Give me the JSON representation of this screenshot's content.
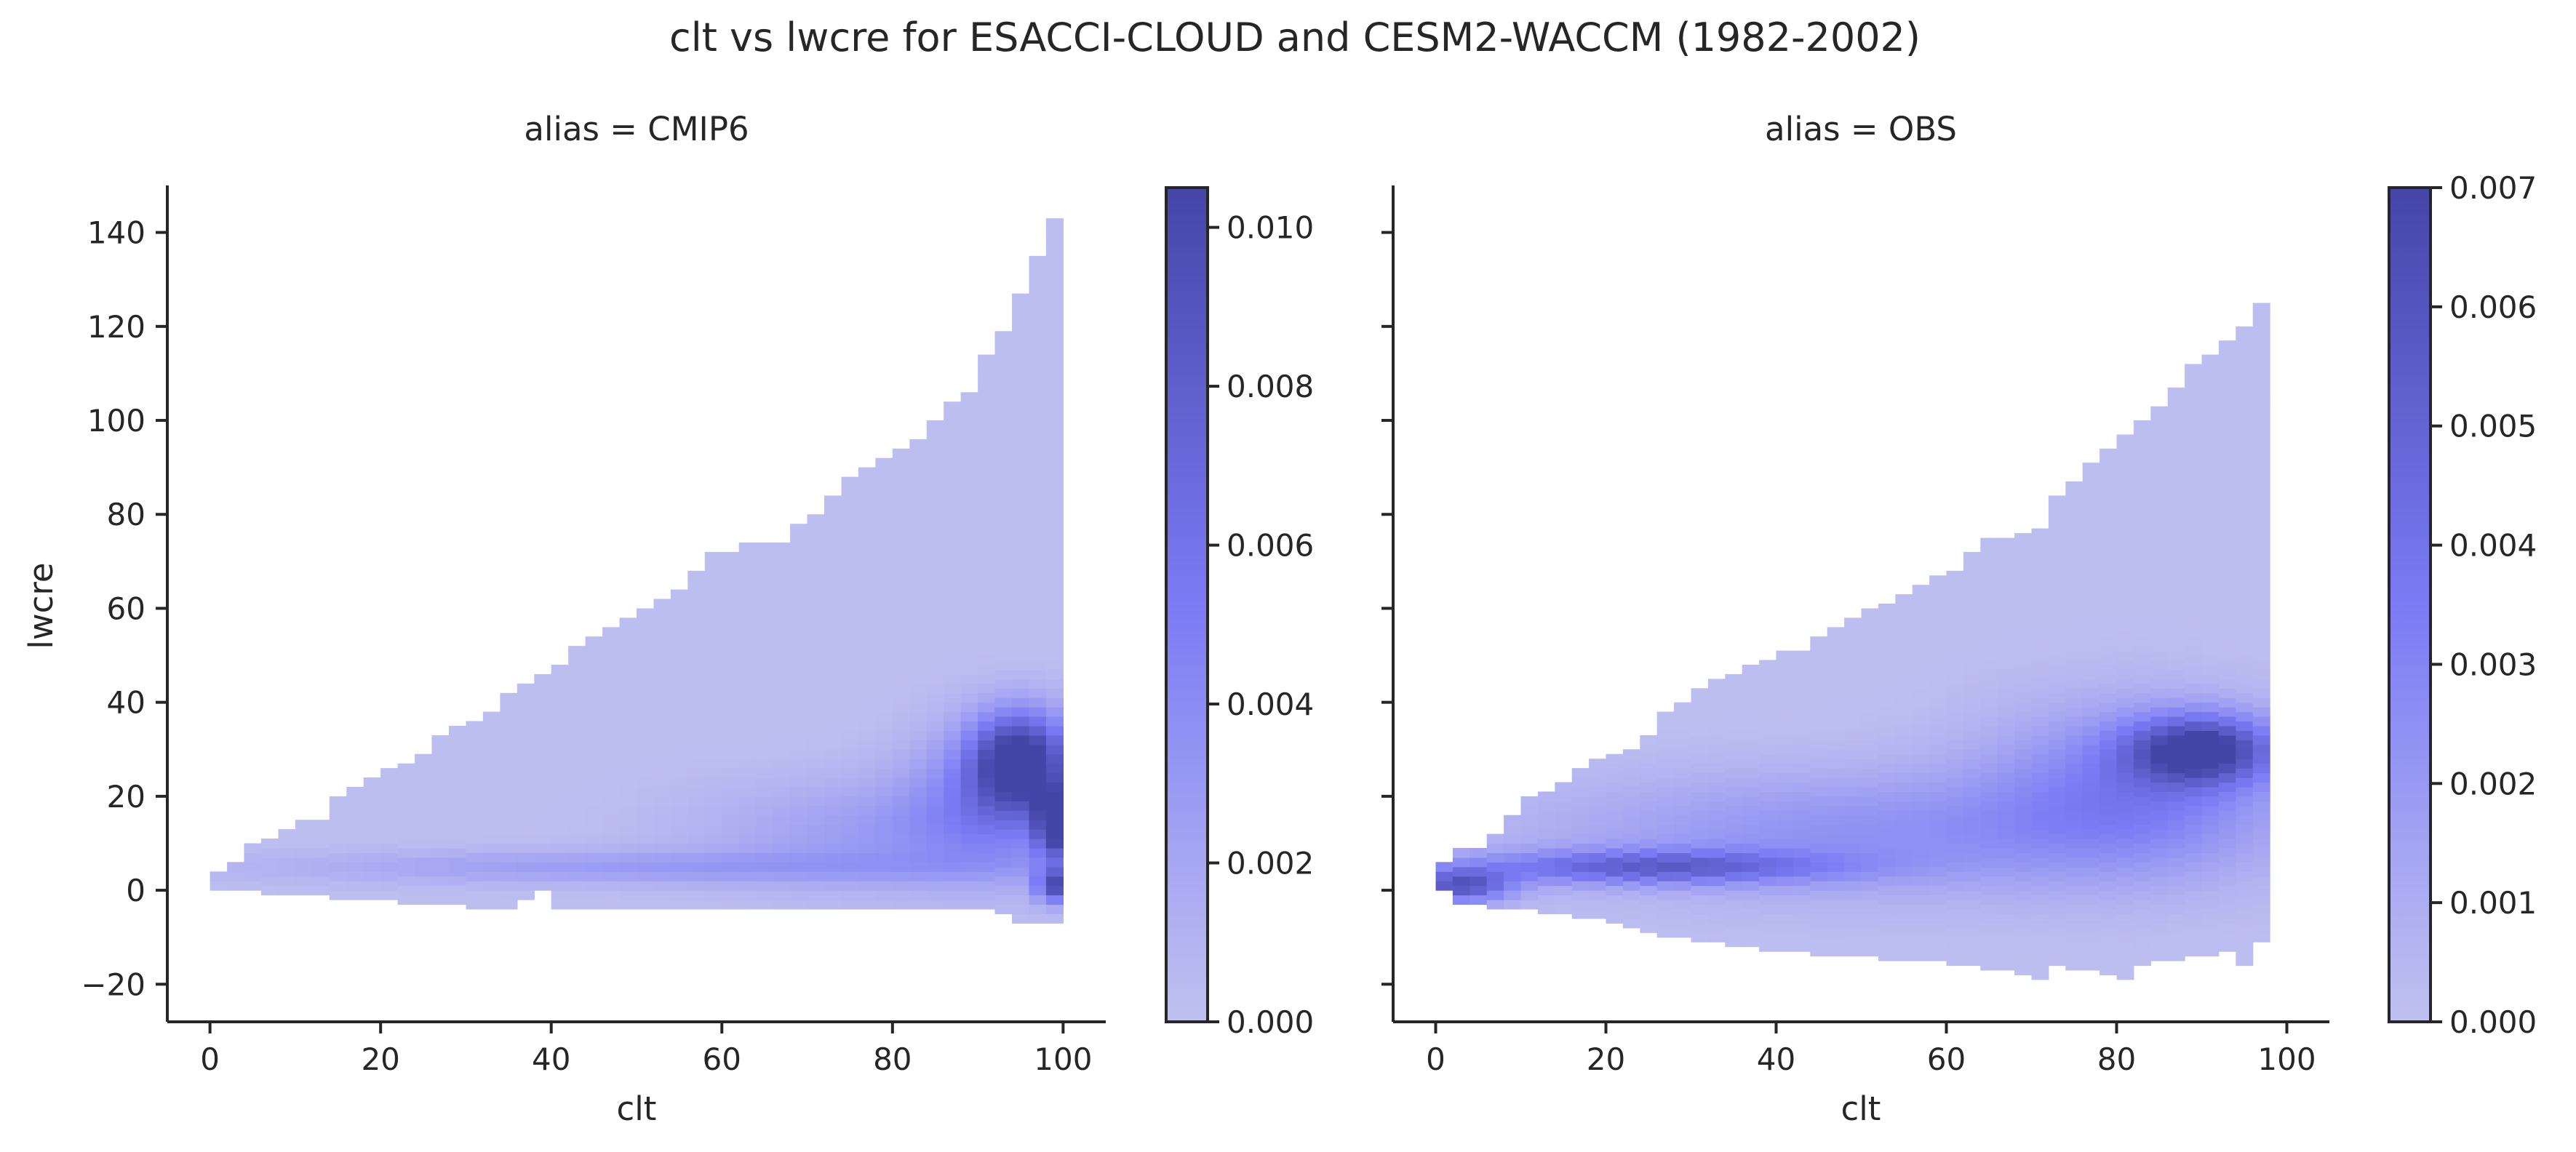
{
  "figure_title": "clt vs lwcre for ESACCI-CLOUD and CESM2-WACCM (1982-2002)",
  "colors": {
    "low": "#c0c1f0",
    "mid": "#6b6bf9",
    "high": "#4545a8",
    "axis": "#262626",
    "background": "#ffffff"
  },
  "chart_data": [
    {
      "type": "heatmap",
      "title": "alias = CMIP6",
      "xlabel": "clt",
      "ylabel": "lwcre",
      "xlim": [
        -5,
        105
      ],
      "ylim": [
        -28,
        150
      ],
      "x_ticks": [
        0,
        20,
        40,
        60,
        80,
        100
      ],
      "x_tick_labels": [
        "0",
        "20",
        "40",
        "60",
        "80",
        "100"
      ],
      "y_ticks": [
        -20,
        0,
        20,
        40,
        60,
        80,
        100,
        120,
        140
      ],
      "y_tick_labels": [
        "−20",
        "0",
        "20",
        "40",
        "60",
        "80",
        "100",
        "120",
        "140"
      ],
      "grid": false,
      "colorbar": {
        "vmin": 0.0,
        "vmax": 0.0105,
        "ticks": [
          0.0,
          0.002,
          0.004,
          0.006,
          0.008,
          0.01
        ],
        "tick_labels": [
          "0.000",
          "0.002",
          "0.004",
          "0.006",
          "0.008",
          "0.010"
        ]
      },
      "density": {
        "bin_width_x": 2,
        "bin_height_y": 2,
        "x_range": [
          0,
          100
        ],
        "upper_envelope": [
          [
            0,
            3
          ],
          [
            2,
            6
          ],
          [
            4,
            9
          ],
          [
            8,
            12
          ],
          [
            12,
            15
          ],
          [
            14,
            19
          ],
          [
            16,
            22
          ],
          [
            20,
            25
          ],
          [
            24,
            28
          ],
          [
            26,
            32
          ],
          [
            30,
            35
          ],
          [
            32,
            38
          ],
          [
            34,
            42
          ],
          [
            38,
            45
          ],
          [
            40,
            48
          ],
          [
            42,
            51
          ],
          [
            44,
            54
          ],
          [
            48,
            58
          ],
          [
            54,
            64
          ],
          [
            56,
            67
          ],
          [
            58,
            71
          ],
          [
            66,
            74
          ],
          [
            68,
            77
          ],
          [
            70,
            80
          ],
          [
            72,
            84
          ],
          [
            74,
            87
          ],
          [
            76,
            90
          ],
          [
            80,
            93
          ],
          [
            82,
            96
          ],
          [
            84,
            99
          ],
          [
            86,
            103
          ],
          [
            88,
            106
          ],
          [
            90,
            113
          ],
          [
            92,
            119
          ],
          [
            94,
            126
          ],
          [
            96,
            134
          ],
          [
            98,
            142
          ],
          [
            100,
            142
          ]
        ],
        "lower_envelope": [
          [
            0,
            0
          ],
          [
            34,
            -4
          ],
          [
            38,
            0
          ],
          [
            40,
            -4
          ],
          [
            90,
            -4
          ],
          [
            94,
            -7
          ],
          [
            100,
            -7
          ]
        ],
        "peaks": [
          {
            "x": 95,
            "y": 28,
            "sx": 4,
            "sy": 7,
            "value": 0.0105
          },
          {
            "x": 99,
            "y": 14,
            "sx": 1.5,
            "sy": 5,
            "value": 0.0098
          },
          {
            "x": 99,
            "y": 1,
            "sx": 1.5,
            "sy": 2.5,
            "value": 0.0085
          },
          {
            "x": 92,
            "y": 20,
            "sx": 7,
            "sy": 10,
            "value": 0.004
          },
          {
            "x": 50,
            "y": 5,
            "sx": 30,
            "sy": 2.5,
            "value": 0.0025
          },
          {
            "x": 80,
            "y": 12,
            "sx": 15,
            "sy": 8,
            "value": 0.0025
          }
        ]
      }
    },
    {
      "type": "heatmap",
      "title": "alias = OBS",
      "xlabel": "clt",
      "ylabel": "",
      "xlim": [
        -5,
        105
      ],
      "ylim": [
        -28,
        150
      ],
      "x_ticks": [
        0,
        20,
        40,
        60,
        80,
        100
      ],
      "x_tick_labels": [
        "0",
        "20",
        "40",
        "60",
        "80",
        "100"
      ],
      "y_ticks": [
        -20,
        0,
        20,
        40,
        60,
        80,
        100,
        120,
        140
      ],
      "y_tick_labels": [
        "",
        "",
        "",
        "",
        "",
        "",
        "",
        "",
        ""
      ],
      "grid": false,
      "colorbar": {
        "vmin": 0.0,
        "vmax": 0.007,
        "ticks": [
          0.0,
          0.001,
          0.002,
          0.003,
          0.004,
          0.005,
          0.006,
          0.007
        ],
        "tick_labels": [
          "0.000",
          "0.001",
          "0.002",
          "0.003",
          "0.004",
          "0.005",
          "0.006",
          "0.007"
        ]
      },
      "density": {
        "bin_width_x": 2,
        "bin_height_y": 2,
        "x_range": [
          0,
          98
        ],
        "upper_envelope": [
          [
            0,
            6
          ],
          [
            4,
            9
          ],
          [
            6,
            12
          ],
          [
            8,
            15
          ],
          [
            10,
            19
          ],
          [
            16,
            25
          ],
          [
            20,
            28
          ],
          [
            24,
            32
          ],
          [
            26,
            38
          ],
          [
            30,
            42
          ],
          [
            34,
            45
          ],
          [
            38,
            48
          ],
          [
            42,
            51
          ],
          [
            44,
            54
          ],
          [
            48,
            58
          ],
          [
            52,
            61
          ],
          [
            56,
            64
          ],
          [
            60,
            67
          ],
          [
            64,
            74
          ],
          [
            70,
            77
          ],
          [
            72,
            84
          ],
          [
            76,
            90
          ],
          [
            78,
            93
          ],
          [
            82,
            99
          ],
          [
            86,
            106
          ],
          [
            88,
            112
          ],
          [
            92,
            116
          ],
          [
            96,
            124
          ],
          [
            98,
            124
          ]
        ],
        "lower_envelope": [
          [
            0,
            0
          ],
          [
            2,
            -3
          ],
          [
            18,
            -6
          ],
          [
            26,
            -10
          ],
          [
            38,
            -13
          ],
          [
            62,
            -16
          ],
          [
            70,
            -19
          ],
          [
            72,
            -16
          ],
          [
            80,
            -19
          ],
          [
            82,
            -16
          ],
          [
            92,
            -13
          ],
          [
            94,
            -16
          ],
          [
            96,
            -11
          ],
          [
            98,
            -11
          ]
        ],
        "peaks": [
          {
            "x": 90,
            "y": 30,
            "sx": 6,
            "sy": 5,
            "value": 0.0065
          },
          {
            "x": 82,
            "y": 22,
            "sx": 12,
            "sy": 12,
            "value": 0.003
          },
          {
            "x": 25,
            "y": 5,
            "sx": 15,
            "sy": 2.5,
            "value": 0.0045
          },
          {
            "x": 3,
            "y": 1,
            "sx": 4,
            "sy": 2.5,
            "value": 0.0055
          },
          {
            "x": 50,
            "y": 12,
            "sx": 25,
            "sy": 9,
            "value": 0.0022
          }
        ]
      }
    }
  ]
}
